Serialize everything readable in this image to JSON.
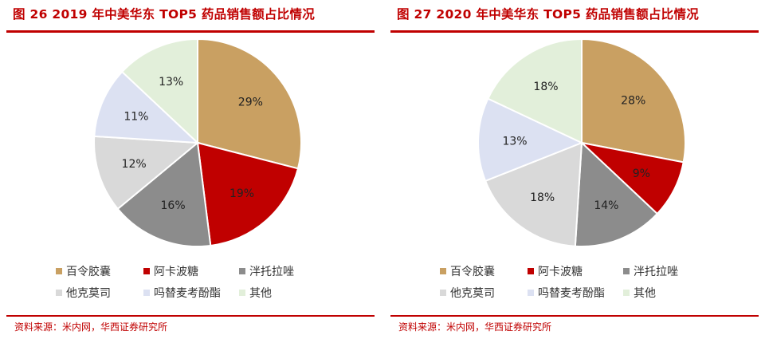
{
  "legend_labels": [
    "百令胶囊",
    "阿卡波糖",
    "泮托拉唑",
    "他克莫司",
    "吗替麦考酚酯",
    "其他"
  ],
  "colors": [
    "#c9a062",
    "#c00000",
    "#8c8c8c",
    "#d9d9d9",
    "#dce1f2",
    "#e2efda"
  ],
  "chart_data": [
    {
      "type": "pie",
      "title": "图 26  2019 年中美华东 TOP5 药品销售额占比情况",
      "categories": [
        "百令胶囊",
        "阿卡波糖",
        "泮托拉唑",
        "他克莫司",
        "吗替麦考酚酯",
        "其他"
      ],
      "values": [
        29,
        19,
        16,
        12,
        11,
        13
      ],
      "value_labels": [
        "29%",
        "19%",
        "16%",
        "12%",
        "11%",
        "13%"
      ],
      "source": "资料来源：米内网，华西证券研究所"
    },
    {
      "type": "pie",
      "title": "图 27  2020 年中美华东 TOP5 药品销售额占比情况",
      "categories": [
        "百令胶囊",
        "阿卡波糖",
        "泮托拉唑",
        "他克莫司",
        "吗替麦考酚酯",
        "其他"
      ],
      "values": [
        28,
        9,
        14,
        18,
        13,
        18
      ],
      "value_labels": [
        "28%",
        "9%",
        "14%",
        "18%",
        "13%",
        "18%"
      ],
      "source": "资料来源：米内网，华西证券研究所"
    }
  ]
}
